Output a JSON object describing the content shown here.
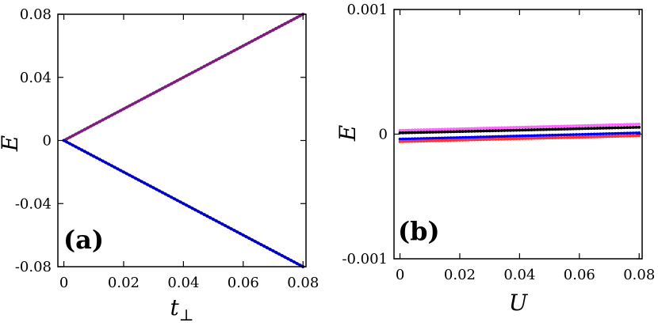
{
  "chart_data": [
    {
      "type": "line",
      "panel_label": "(a)",
      "xlabel": "t⊥",
      "ylabel": "E",
      "xlim": [
        -0.002,
        0.081
      ],
      "ylim": [
        -0.08,
        0.08
      ],
      "xticks": [
        0,
        0.02,
        0.04,
        0.06,
        0.08
      ],
      "xtick_labels": [
        "0",
        "0.02",
        "0.04",
        "0.06",
        "0.08"
      ],
      "yticks": [
        -0.08,
        -0.04,
        0,
        0.04,
        0.08
      ],
      "ytick_labels": [
        "-0.08",
        "-0.04",
        "0",
        "0.04",
        "0.08"
      ],
      "grid": false,
      "x": [
        0,
        0.02,
        0.04,
        0.06,
        0.08
      ],
      "series": [
        {
          "values": [
            0,
            0.02,
            0.04,
            0.06,
            0.08
          ],
          "color": "#ff00ff"
        },
        {
          "values": [
            0,
            0.02,
            0.04,
            0.06,
            0.08
          ],
          "color": "#7a1f7a"
        },
        {
          "values": [
            0,
            -0.02,
            -0.04,
            -0.06,
            -0.08
          ],
          "color": "#5050ff"
        },
        {
          "values": [
            0,
            -0.02,
            -0.04,
            -0.06,
            -0.08
          ],
          "color": "#0000c0"
        }
      ]
    },
    {
      "type": "line",
      "panel_label": "(b)",
      "xlabel": "U",
      "ylabel": "E",
      "xlim": [
        -0.002,
        0.081
      ],
      "ylim": [
        -0.001,
        0.001
      ],
      "xticks": [
        0,
        0.02,
        0.04,
        0.06,
        0.08
      ],
      "xtick_labels": [
        "0",
        "0.02",
        "0.04",
        "0.06",
        "0.08"
      ],
      "yticks": [
        -0.001,
        0,
        0.001
      ],
      "ytick_labels": [
        "-0.001",
        "0",
        "0.001"
      ],
      "grid": false,
      "x": [
        0,
        0.02,
        0.04,
        0.06,
        0.08
      ],
      "series": [
        {
          "values": [
            3e-05,
            4.2e-05,
            5.5e-05,
            6.7e-05,
            8e-05
          ],
          "color": "#ff66ff"
        },
        {
          "values": [
            1e-05,
            2.1e-05,
            3.2e-05,
            4.4e-05,
            5.5e-05
          ],
          "color": "#000000"
        },
        {
          "values": [
            -4e-05,
            -2.8e-05,
            -1.5e-05,
            -3e-06,
            1e-05
          ],
          "color": "#0000ff"
        },
        {
          "values": [
            -6e-05,
            -4.8e-05,
            -3.6e-05,
            -2.5e-05,
            -1.2e-05
          ],
          "color": "#ff3333"
        }
      ]
    }
  ]
}
